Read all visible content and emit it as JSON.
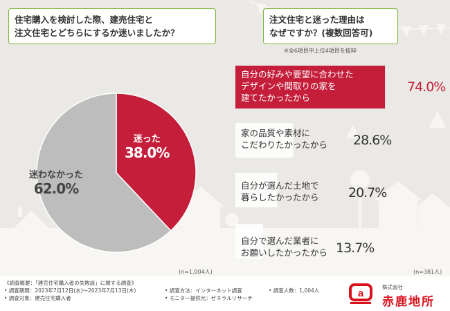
{
  "questions": {
    "left": [
      "住宅購入を検討した際、建売住宅と",
      "注文住宅とどちらにするか迷いましたか？"
    ],
    "right": [
      "注文住宅と迷った理由は",
      "なぜですか？(複数回答可)"
    ]
  },
  "note": "※全6項目中上位4項目を抜粋",
  "colors": {
    "red": "#c41e3a",
    "gray": "#bdbdbd",
    "green": "#7ab536",
    "brand": "#d8111d"
  },
  "chart_data": [
    {
      "type": "pie",
      "title": "住宅購入を検討した際、建売住宅と注文住宅とどちらにするか迷いましたか？",
      "slices": [
        {
          "label": "迷った",
          "value": 38.0,
          "display": "38.0%",
          "color": "#c41e3a"
        },
        {
          "label": "迷わなかった",
          "value": 62.0,
          "display": "62.0%",
          "color": "#bdbdbd"
        }
      ],
      "n": "(n=1,004人)"
    },
    {
      "type": "bar",
      "orientation": "horizontal",
      "title": "注文住宅と迷った理由はなぜですか？(複数回答可)",
      "xlim": [
        0,
        100
      ],
      "categories": [
        [
          "自分の好みや要望に合わせた",
          "デザインや間取りの家を",
          "建てたかったから"
        ],
        [
          "家の品質や素材に",
          "こだわりたかったから"
        ],
        [
          "自分が選んだ土地で",
          "暮らしたかったから"
        ],
        [
          "自分で選んだ業者に",
          "お願いしたかったから"
        ]
      ],
      "values": [
        74.0,
        28.6,
        20.7,
        13.7
      ],
      "display": [
        "74.0%",
        "28.6%",
        "20.7%",
        "13.7%"
      ],
      "n": "(n=381人)"
    }
  ],
  "footer": {
    "left": [
      "《調査概要：「建売住宅購入者の失敗談」に関する調査》",
      "• 調査期間：2023年7月12日(水)〜2023年7月13日(木)",
      "• 調査対象：建売住宅購入者"
    ],
    "middle": [
      "• 調査方法：インターネット調査",
      "• モニター提供元：ゼネラルリサーチ"
    ],
    "right": [
      "• 調査人数：1,004人"
    ]
  },
  "brand": {
    "company_type": "株式会社",
    "name": "赤鹿地所",
    "logo_letter": "a"
  }
}
